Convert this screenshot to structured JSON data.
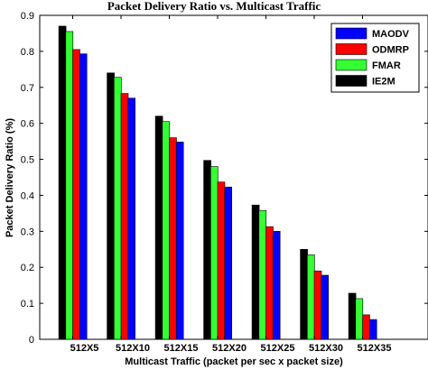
{
  "chart_data": {
    "type": "bar",
    "title": "Packet Delivery Ratio vs. Multicast Traffic",
    "xlabel": "Multicast Traffic (packet per sec x packet size)",
    "ylabel": "Packet Delivery Ratio (%)",
    "ylim": [
      0,
      0.9
    ],
    "yticks": [
      0,
      0.1,
      0.2,
      0.3,
      0.4,
      0.5,
      0.6,
      0.7,
      0.8,
      0.9
    ],
    "categories": [
      "512X5",
      "512X10",
      "512X15",
      "512X20",
      "512X25",
      "512X30",
      "512X35"
    ],
    "grid": false,
    "legend_position": "top-right",
    "legend_order": [
      "MAODV",
      "ODMRP",
      "FMAR",
      "IE2M"
    ],
    "series": [
      {
        "name": "IE2M",
        "color": "#000000",
        "values": [
          0.87,
          0.74,
          0.62,
          0.497,
          0.373,
          0.25,
          0.128
        ]
      },
      {
        "name": "FMAR",
        "color": "#33ff33",
        "values": [
          0.855,
          0.728,
          0.605,
          0.48,
          0.358,
          0.235,
          0.113
        ]
      },
      {
        "name": "ODMRP",
        "color": "#ff0000",
        "values": [
          0.805,
          0.683,
          0.56,
          0.437,
          0.313,
          0.19,
          0.068
        ]
      },
      {
        "name": "MAODV",
        "color": "#0000ff",
        "values": [
          0.793,
          0.67,
          0.548,
          0.423,
          0.3,
          0.178,
          0.055
        ]
      }
    ]
  }
}
